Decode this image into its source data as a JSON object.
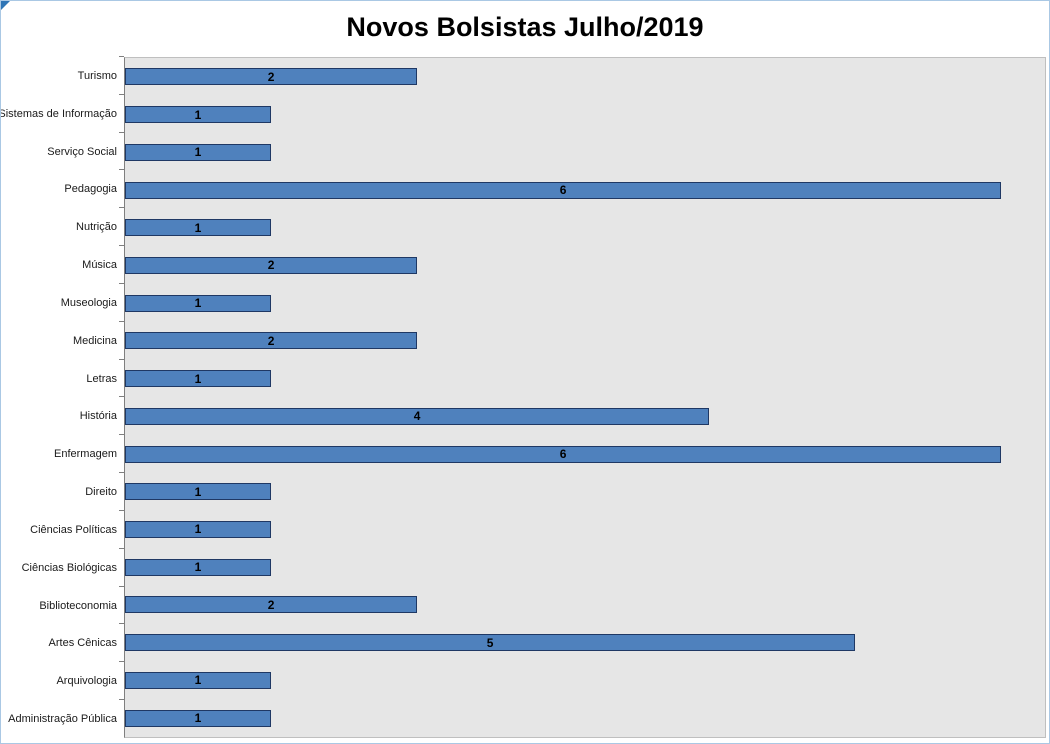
{
  "title": "Novos Bolsistas Julho/2019",
  "chart_data": {
    "type": "bar",
    "orientation": "horizontal",
    "title": "Novos Bolsistas Julho/2019",
    "categories": [
      "Turismo",
      "Sistemas de Informação",
      "Serviço Social",
      "Pedagogia",
      "Nutrição",
      "Música",
      "Museologia",
      "Medicina",
      "Letras",
      "História",
      "Enfermagem",
      "Direito",
      "Ciências Políticas",
      "Ciências Biológicas",
      "Biblioteconomia",
      "Artes Cênicas",
      "Arquivologia",
      "Administração Pública"
    ],
    "values": [
      2,
      1,
      1,
      6,
      1,
      2,
      1,
      2,
      1,
      4,
      6,
      1,
      1,
      1,
      2,
      5,
      1,
      1
    ],
    "xlabel": "",
    "ylabel": "",
    "xlim": [
      0,
      6.3
    ],
    "grid": false,
    "legend": false,
    "value_label_position": "center",
    "bar_color": "#4f81bd",
    "bar_border_color": "#1f3864",
    "plot_bg": "#e6e6e6"
  }
}
